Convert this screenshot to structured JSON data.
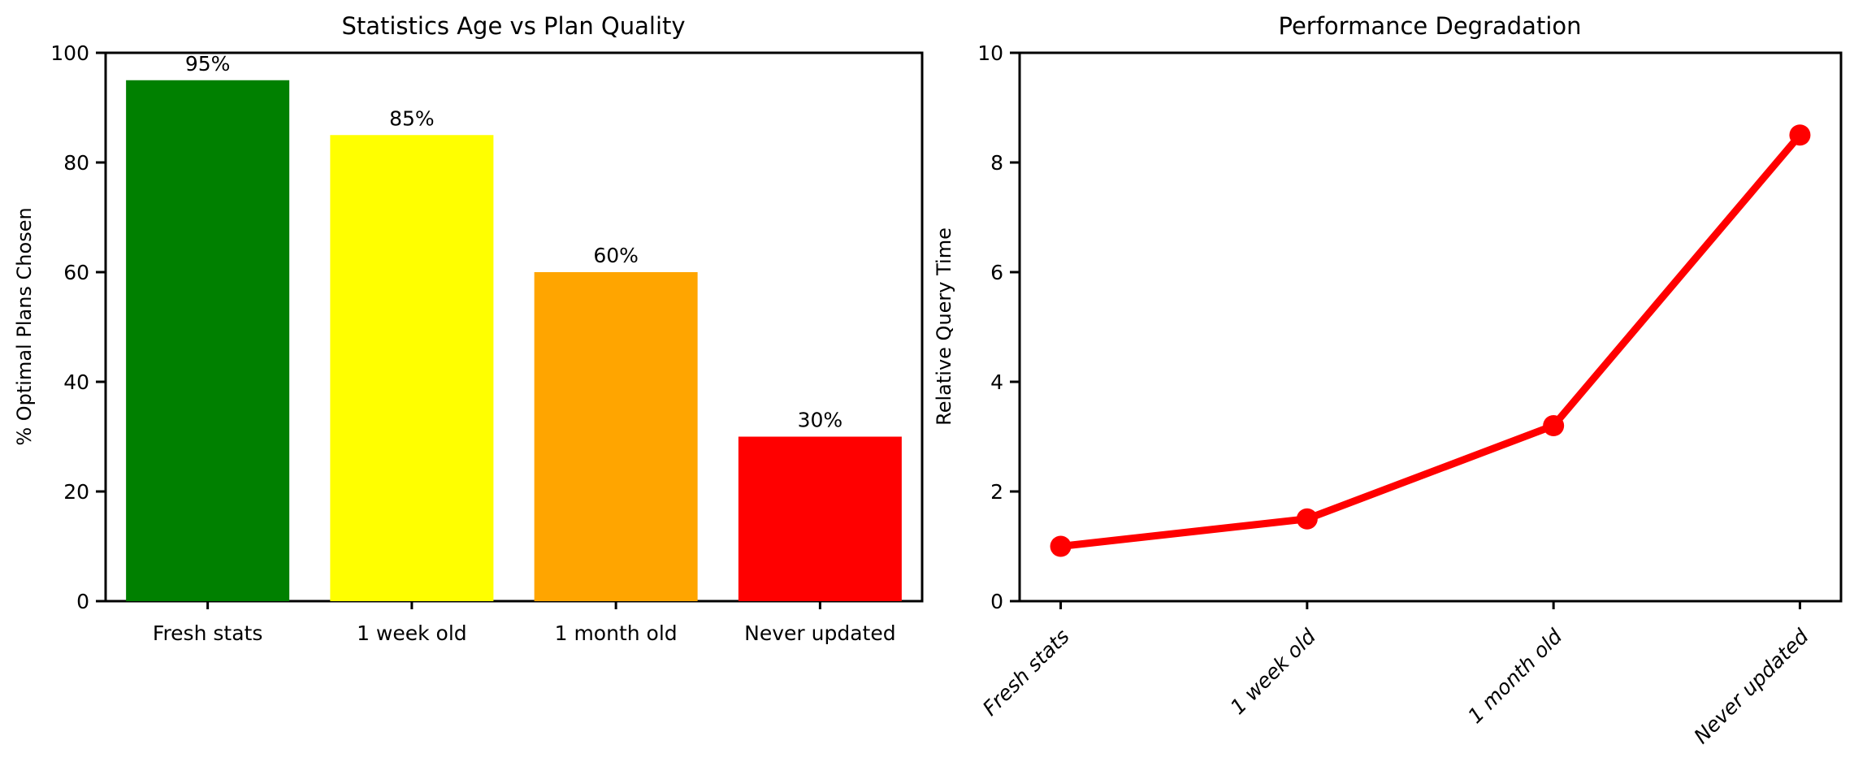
{
  "figure": {
    "background": "#ffffff",
    "text_color": "#000000"
  },
  "chart_data": [
    {
      "id": "statistics-age-vs-plan-quality",
      "type": "bar",
      "title": "Statistics Age vs Plan Quality",
      "xlabel": "",
      "ylabel": "% Optimal Plans Chosen",
      "categories": [
        "Fresh stats",
        "1 week old",
        "1 month old",
        "Never updated"
      ],
      "values": [
        95,
        85,
        60,
        30
      ],
      "bar_labels": [
        "95%",
        "85%",
        "60%",
        "30%"
      ],
      "bar_colors": [
        "#008000",
        "#ffff00",
        "#ffa500",
        "#ff0000"
      ],
      "bar_width_fraction": 0.8,
      "ylim": [
        0,
        100
      ],
      "yticks": [
        0,
        20,
        40,
        60,
        80,
        100
      ],
      "grid": false,
      "legend": "none"
    },
    {
      "id": "performance-degradation",
      "type": "line",
      "title": "Performance Degradation",
      "xlabel": "",
      "ylabel": "Relative Query Time",
      "categories": [
        "Fresh stats",
        "1 week old",
        "1 month old",
        "Never updated"
      ],
      "values": [
        1.0,
        1.5,
        3.2,
        8.5
      ],
      "line_color": "#ff0000",
      "marker": "circle",
      "marker_color": "#ff0000",
      "ylim": [
        0,
        10
      ],
      "yticks": [
        0,
        2,
        4,
        6,
        8,
        10
      ],
      "xtick_rotation_deg": 45,
      "grid": false,
      "legend": "none"
    }
  ]
}
